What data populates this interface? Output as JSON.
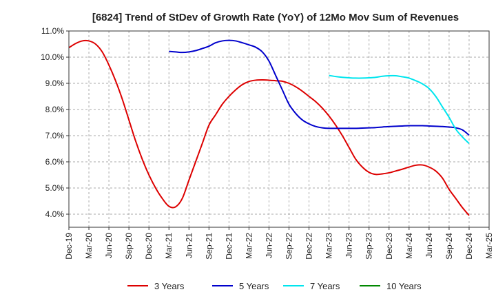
{
  "chart_data": {
    "type": "line",
    "title": "[6824]  Trend of StDev of Growth Rate (YoY) of 12Mo Mov Sum of Revenues",
    "xlabel": "",
    "ylabel": "",
    "grid": true,
    "legend_position": "bottom",
    "x_tick_labels": [
      "Dec-19",
      "Mar-20",
      "Jun-20",
      "Sep-20",
      "Dec-20",
      "Mar-21",
      "Jun-21",
      "Sep-21",
      "Dec-21",
      "Mar-22",
      "Jun-22",
      "Sep-22",
      "Dec-22",
      "Mar-23",
      "Jun-23",
      "Sep-23",
      "Dec-23",
      "Mar-24",
      "Jun-24",
      "Sep-24",
      "Dec-24",
      "Mar-25"
    ],
    "y_ticks": [
      4.0,
      5.0,
      6.0,
      7.0,
      8.0,
      9.0,
      10.0,
      11.0
    ],
    "y_tick_labels": [
      "4.0%",
      "5.0%",
      "6.0%",
      "7.0%",
      "8.0%",
      "9.0%",
      "10.0%",
      "11.0%"
    ],
    "ylim": [
      3.5,
      11.0
    ],
    "xlim": [
      0,
      63
    ],
    "series": [
      {
        "name": "3 Years",
        "color": "#dd0000",
        "x": [
          0,
          1,
          2,
          3,
          4,
          5,
          6,
          7,
          8,
          9,
          10,
          11,
          12,
          13,
          14,
          15,
          16,
          17,
          18,
          19,
          20,
          21,
          22,
          23,
          24,
          25,
          26,
          27,
          28,
          29,
          30,
          31,
          32,
          33,
          34,
          35,
          36,
          37,
          38,
          39,
          40,
          41,
          42,
          43,
          44,
          45,
          46,
          47,
          48,
          49,
          50,
          51,
          52,
          53,
          54,
          55,
          56,
          57,
          58,
          59,
          60
        ],
        "values": [
          10.36,
          10.52,
          10.62,
          10.62,
          10.5,
          10.2,
          9.7,
          9.1,
          8.4,
          7.6,
          6.8,
          6.1,
          5.5,
          5.0,
          4.6,
          4.3,
          4.28,
          4.6,
          5.3,
          6.0,
          6.7,
          7.4,
          7.8,
          8.2,
          8.5,
          8.75,
          8.95,
          9.07,
          9.12,
          9.13,
          9.12,
          9.1,
          9.08,
          9.0,
          8.87,
          8.7,
          8.5,
          8.3,
          8.05,
          7.75,
          7.4,
          7.0,
          6.55,
          6.1,
          5.8,
          5.6,
          5.52,
          5.54,
          5.58,
          5.65,
          5.72,
          5.8,
          5.87,
          5.88,
          5.8,
          5.65,
          5.38,
          4.95,
          4.6,
          4.25,
          3.95
        ]
      },
      {
        "name": "5 Years",
        "color": "#0000cc",
        "x": [
          15,
          16,
          17,
          18,
          19,
          20,
          21,
          22,
          23,
          24,
          25,
          26,
          27,
          28,
          29,
          30,
          31,
          32,
          33,
          34,
          35,
          36,
          37,
          38,
          39,
          40,
          41,
          42,
          43,
          44,
          45,
          46,
          47,
          48,
          49,
          50,
          51,
          52,
          53,
          54,
          55,
          56,
          57,
          58,
          59,
          60
        ],
        "values": [
          10.22,
          10.2,
          10.18,
          10.2,
          10.25,
          10.33,
          10.42,
          10.55,
          10.62,
          10.64,
          10.62,
          10.55,
          10.47,
          10.38,
          10.2,
          9.85,
          9.3,
          8.75,
          8.2,
          7.85,
          7.6,
          7.45,
          7.35,
          7.3,
          7.28,
          7.28,
          7.28,
          7.28,
          7.28,
          7.29,
          7.3,
          7.31,
          7.33,
          7.35,
          7.36,
          7.37,
          7.38,
          7.38,
          7.38,
          7.37,
          7.36,
          7.35,
          7.33,
          7.3,
          7.22,
          7.02
        ]
      },
      {
        "name": "7 Years",
        "color": "#00e5ee",
        "x": [
          39,
          40,
          41,
          42,
          43,
          44,
          45,
          46,
          47,
          48,
          49,
          50,
          51,
          52,
          53,
          54,
          55,
          56,
          57,
          58,
          59,
          60
        ],
        "values": [
          9.3,
          9.26,
          9.23,
          9.21,
          9.2,
          9.2,
          9.21,
          9.23,
          9.27,
          9.29,
          9.29,
          9.25,
          9.2,
          9.1,
          8.98,
          8.8,
          8.5,
          8.1,
          7.7,
          7.25,
          6.95,
          6.7
        ]
      },
      {
        "name": "10 Years",
        "color": "#008800",
        "x": [],
        "values": []
      }
    ]
  }
}
